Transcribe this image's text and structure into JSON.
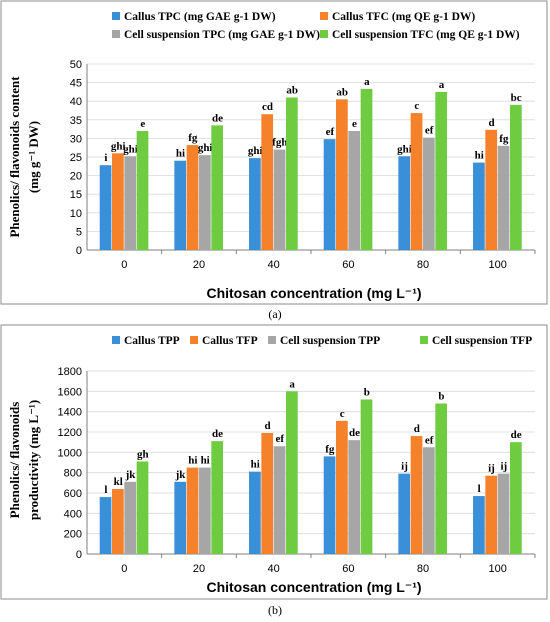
{
  "chart_data": [
    {
      "type": "bar",
      "panel": "(a)",
      "categories": [
        "0",
        "20",
        "40",
        "60",
        "80",
        "100"
      ],
      "xlabel": "Chitosan concentration (mg L⁻¹)",
      "ylabel_lines": [
        "Phenolics/ flavonoids content",
        "(mg g⁻¹ DW)"
      ],
      "ylim": [
        0,
        50
      ],
      "yticks": [
        0,
        5,
        10,
        15,
        20,
        25,
        30,
        35,
        40,
        45,
        50
      ],
      "grid": true,
      "legend_position": "top",
      "series": [
        {
          "name": "Callus TPC (mg GAE g-1 DW)",
          "color": "#3a8fd9",
          "values": [
            22.8,
            24.0,
            24.7,
            29.8,
            25.2,
            23.5
          ],
          "labels": [
            "i",
            "hi",
            "ghi",
            "ef",
            "ghi",
            "hi"
          ]
        },
        {
          "name": "Callus TFC (mg QE g-1 DW)",
          "color": "#f5822a",
          "values": [
            26.0,
            28.2,
            36.5,
            40.5,
            36.8,
            32.3
          ],
          "labels": [
            "ghi",
            "fg",
            "cd",
            "ab",
            "c",
            "d"
          ]
        },
        {
          "name": "Cell suspension TPC (mg GAE g-1 DW)",
          "color": "#a6a6a6",
          "values": [
            25.2,
            25.5,
            27.0,
            32.0,
            30.2,
            28.0
          ],
          "labels": [
            "ghi",
            "ghi",
            "fgh",
            "e",
            "ef",
            "fg"
          ]
        },
        {
          "name": "Cell suspension TFC (mg QE g-1 DW)",
          "color": "#6fcb3f",
          "values": [
            32.0,
            33.5,
            41.0,
            43.3,
            42.5,
            39.0
          ],
          "labels": [
            "e",
            "de",
            "ab",
            "a",
            "a",
            "bc"
          ]
        }
      ]
    },
    {
      "type": "bar",
      "panel": "(b)",
      "categories": [
        "0",
        "20",
        "40",
        "60",
        "80",
        "100"
      ],
      "xlabel": "Chitosan concentration (mg L⁻¹)",
      "ylabel_lines": [
        "Phenolics/ flavonoids",
        "productivity (mg L⁻¹)"
      ],
      "ylim": [
        0,
        1800
      ],
      "yticks": [
        0,
        200,
        400,
        600,
        800,
        1000,
        1200,
        1400,
        1600,
        1800
      ],
      "grid": true,
      "legend_position": "top",
      "series": [
        {
          "name": "Callus TPP",
          "color": "#3a8fd9",
          "values": [
            560,
            710,
            810,
            960,
            790,
            570
          ],
          "labels": [
            "l",
            "jk",
            "hi",
            "fg",
            "ij",
            "l"
          ]
        },
        {
          "name": "Callus TFP",
          "color": "#f5822a",
          "values": [
            640,
            850,
            1190,
            1310,
            1160,
            770
          ],
          "labels": [
            "kl",
            "hi",
            "d",
            "c",
            "d",
            "ij"
          ]
        },
        {
          "name": "Cell suspension TPP",
          "color": "#a6a6a6",
          "values": [
            710,
            850,
            1060,
            1120,
            1050,
            790
          ],
          "labels": [
            "jk",
            "hi",
            "ef",
            "de",
            "ef",
            "ij"
          ]
        },
        {
          "name": "Cell suspension TFP",
          "color": "#6fcb3f",
          "values": [
            910,
            1110,
            1600,
            1520,
            1480,
            1100
          ],
          "labels": [
            "gh",
            "de",
            "a",
            "b",
            "b",
            "de"
          ]
        }
      ]
    }
  ]
}
